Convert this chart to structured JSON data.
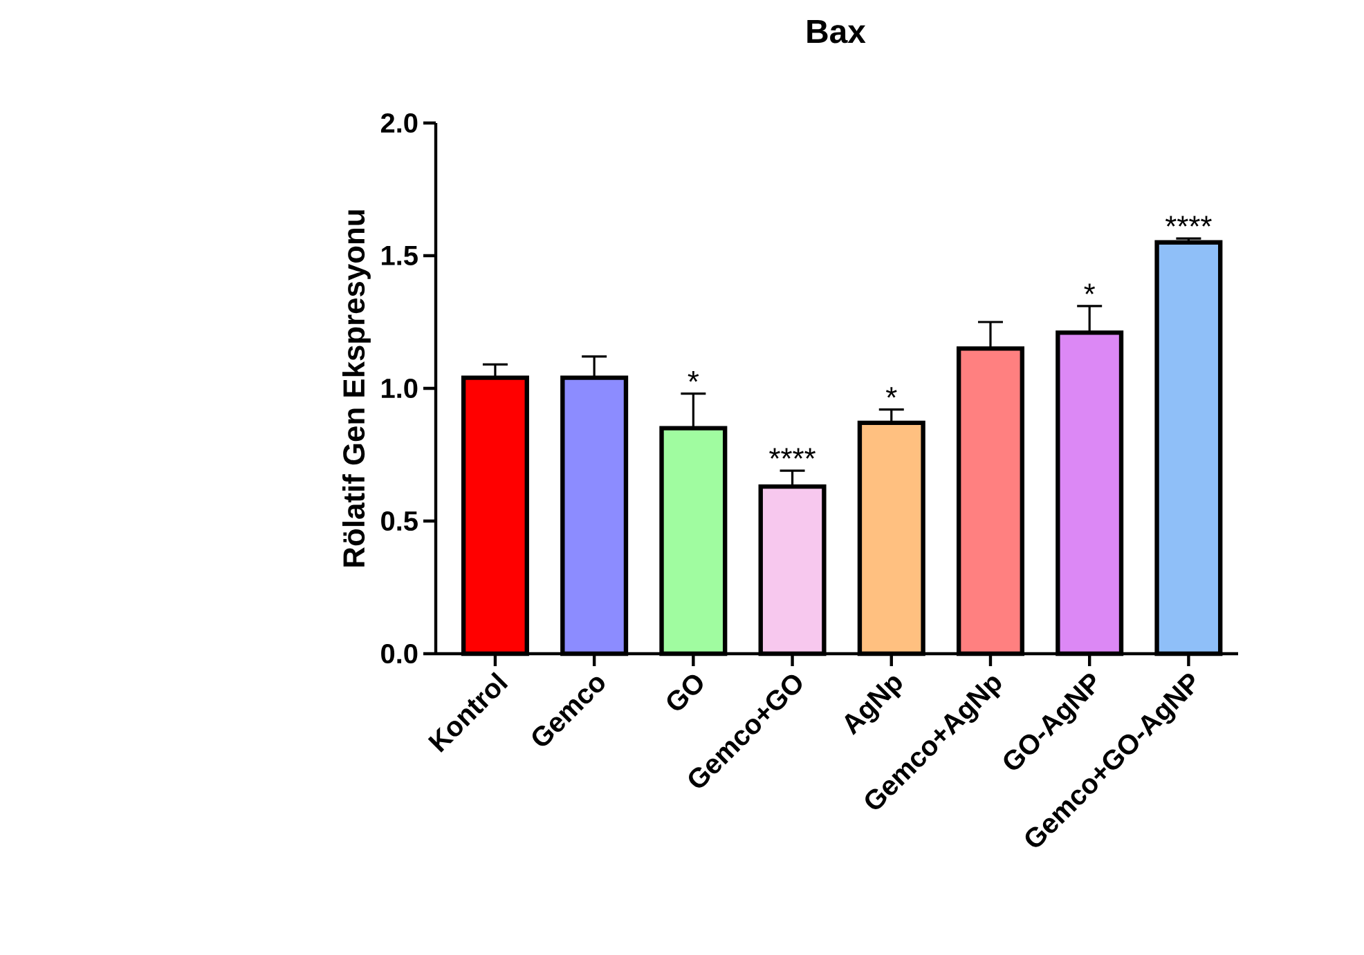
{
  "chart_data": {
    "type": "bar",
    "title": "Bax",
    "ylabel": "Rölatif Gen Ekspresyonu",
    "categories": [
      "Kontrol",
      "Gemco",
      "GO",
      "Gemco+GO",
      "AgNp",
      "Gemco+AgNp",
      "GO-AgNP",
      "Gemco+GO-AgNP"
    ],
    "values": [
      1.04,
      1.04,
      0.85,
      0.63,
      0.87,
      1.15,
      1.21,
      1.55
    ],
    "errors": [
      0.05,
      0.08,
      0.13,
      0.06,
      0.05,
      0.1,
      0.1,
      0.015
    ],
    "colors": [
      "#ff0000",
      "#8c8cff",
      "#a0fca0",
      "#f7c8ee",
      "#ffc080",
      "#ff8080",
      "#dc88f5",
      "#8fbff8"
    ],
    "ylim": [
      0,
      2
    ],
    "yticks": [
      {
        "value": 0,
        "label": "0.0"
      },
      {
        "value": 0.5,
        "label": "0.5"
      },
      {
        "value": 1,
        "label": "1.0"
      },
      {
        "value": 1.5,
        "label": "1.5"
      },
      {
        "value": 2,
        "label": "2.0"
      }
    ],
    "grid": false,
    "annotations": [
      {
        "text": "*",
        "x": "GO",
        "y": 0.98
      },
      {
        "text": "****",
        "x": "Gemco+GO",
        "y": 0.69
      },
      {
        "text": "*",
        "x": "AgNp",
        "y": 0.92
      },
      {
        "text": "*",
        "x": "GO-AgNP",
        "y": 1.31
      },
      {
        "text": "****",
        "x": "Gemco+GO-AgNP",
        "y": 1.565
      }
    ]
  }
}
